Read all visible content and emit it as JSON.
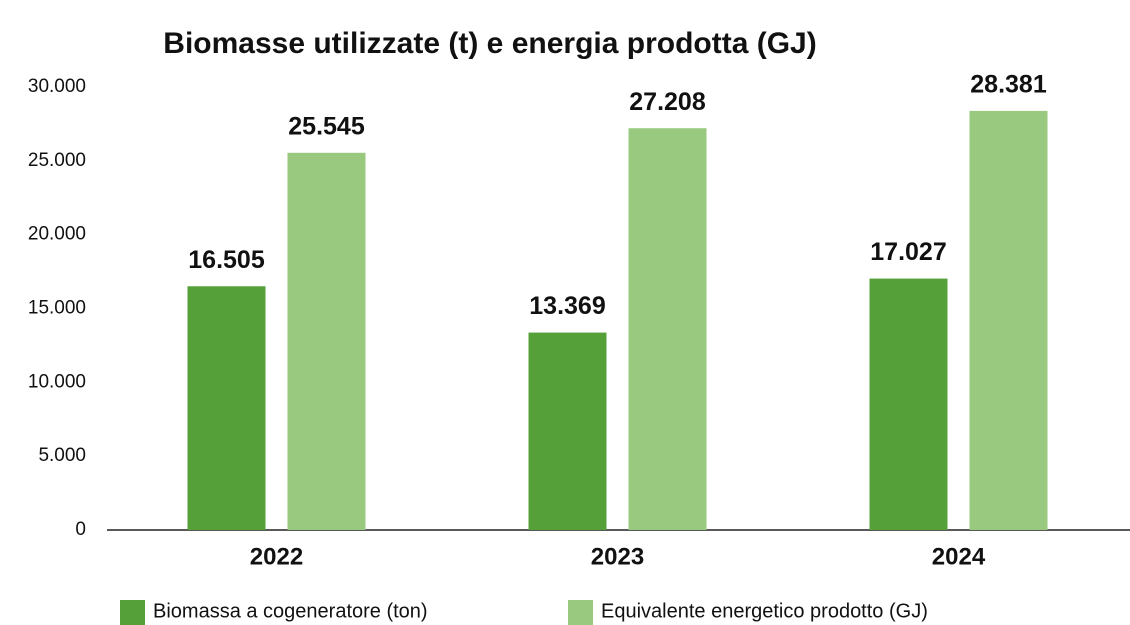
{
  "chart_data": {
    "type": "bar",
    "title": "Biomasse utilizzate (t) e energia prodotta (GJ)",
    "categories": [
      "2022",
      "2023",
      "2024"
    ],
    "series": [
      {
        "name": "Biomassa a cogeneratore (ton)",
        "color": "#55a038",
        "values": [
          16505,
          13369,
          17027
        ],
        "value_labels": [
          "16.505",
          "13.369",
          "17.027"
        ]
      },
      {
        "name": "Equivalente energetico prodotto (GJ)",
        "color": "#98c97e",
        "values": [
          25545,
          27208,
          28381
        ],
        "value_labels": [
          "25.545",
          "27.208",
          "28.381"
        ]
      }
    ],
    "ylim": [
      0,
      30000
    ],
    "yticks": [
      0,
      {
        "value": 5000,
        "label": "5.000"
      },
      {
        "value": 10000,
        "label": "10.000"
      },
      {
        "value": 15000,
        "label": "15.000"
      },
      {
        "value": 20000,
        "label": "20.000"
      },
      {
        "value": 25000,
        "label": "25.000"
      },
      {
        "value": 30000,
        "label": "30.000"
      }
    ],
    "grid": false,
    "legend": "bottom"
  }
}
